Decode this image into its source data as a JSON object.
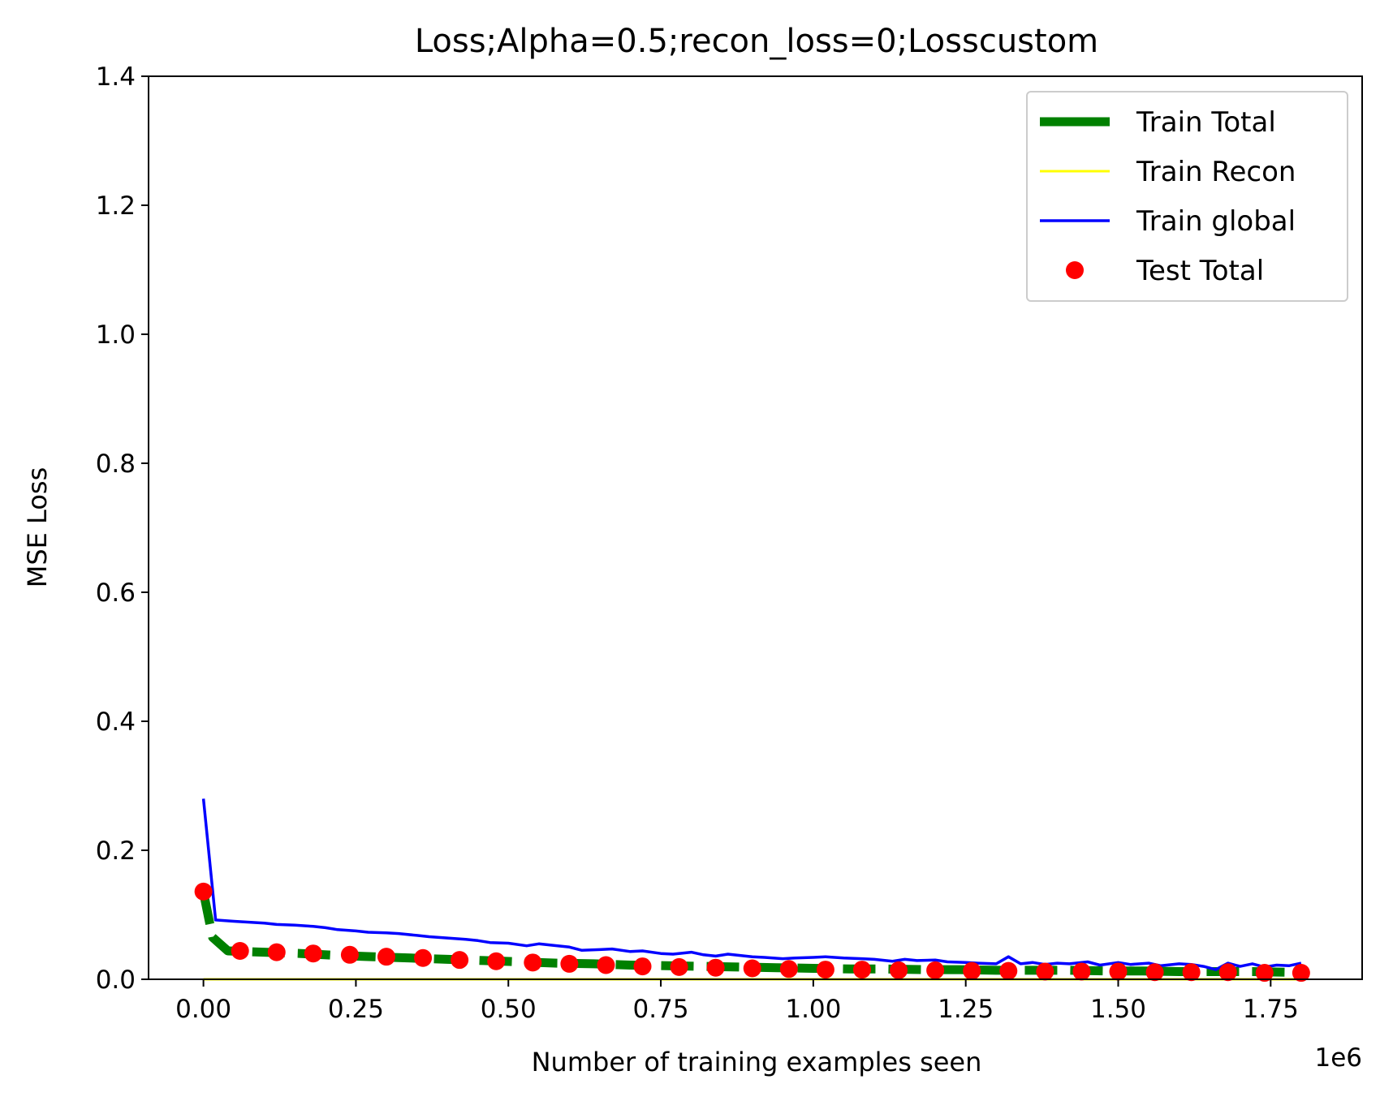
{
  "chart_data": {
    "type": "line",
    "title": "Loss;Alpha=0.5;recon_loss=0;Losscustom",
    "xlabel": "Number of training examples seen",
    "ylabel": "MSE Loss",
    "x_offset_label": "1e6",
    "xlim": [
      -0.09,
      1.9
    ],
    "ylim": [
      0,
      1.4
    ],
    "xticks": [
      0.0,
      0.25,
      0.5,
      0.75,
      1.0,
      1.25,
      1.5,
      1.75
    ],
    "xtick_labels": [
      "0.00",
      "0.25",
      "0.50",
      "0.75",
      "1.00",
      "1.25",
      "1.50",
      "1.75"
    ],
    "yticks": [
      0.0,
      0.2,
      0.4,
      0.6,
      0.8,
      1.0,
      1.2,
      1.4
    ],
    "ytick_labels": [
      "0.0",
      "0.2",
      "0.4",
      "0.6",
      "0.8",
      "1.0",
      "1.2",
      "1.4"
    ],
    "grid": false,
    "legend_position": "upper right",
    "series": [
      {
        "name": "Train Total",
        "kind": "line",
        "style": "dashed",
        "color": "#008000",
        "x": [
          0.0,
          0.015,
          0.04,
          0.1,
          0.16,
          0.22,
          0.28,
          0.34,
          0.4,
          0.46,
          0.52,
          0.58,
          0.64,
          0.7,
          0.76,
          0.82,
          0.88,
          0.94,
          1.0,
          1.06,
          1.12,
          1.18,
          1.24,
          1.3,
          1.36,
          1.42,
          1.48,
          1.54,
          1.6,
          1.66,
          1.72,
          1.78
        ],
        "y": [
          0.135,
          0.065,
          0.044,
          0.042,
          0.04,
          0.037,
          0.035,
          0.033,
          0.031,
          0.029,
          0.027,
          0.025,
          0.024,
          0.022,
          0.021,
          0.02,
          0.019,
          0.018,
          0.017,
          0.016,
          0.016,
          0.015,
          0.015,
          0.014,
          0.014,
          0.014,
          0.013,
          0.013,
          0.012,
          0.012,
          0.012,
          0.011
        ]
      },
      {
        "name": "Train Recon",
        "kind": "line",
        "style": "solid",
        "color": "#ffff00",
        "x": [
          0.0,
          1.8
        ],
        "y": [
          0.0,
          0.0
        ]
      },
      {
        "name": "Train global",
        "kind": "line",
        "style": "solid",
        "color": "#0000ff",
        "x": [
          0.0,
          0.02,
          0.05,
          0.1,
          0.12,
          0.15,
          0.18,
          0.2,
          0.22,
          0.25,
          0.27,
          0.3,
          0.32,
          0.35,
          0.37,
          0.4,
          0.43,
          0.45,
          0.47,
          0.5,
          0.53,
          0.55,
          0.57,
          0.6,
          0.62,
          0.65,
          0.67,
          0.7,
          0.72,
          0.75,
          0.77,
          0.8,
          0.82,
          0.84,
          0.86,
          0.88,
          0.9,
          0.92,
          0.95,
          0.97,
          1.0,
          1.02,
          1.05,
          1.08,
          1.1,
          1.13,
          1.15,
          1.17,
          1.2,
          1.22,
          1.25,
          1.27,
          1.3,
          1.32,
          1.34,
          1.36,
          1.38,
          1.4,
          1.42,
          1.45,
          1.47,
          1.5,
          1.52,
          1.55,
          1.57,
          1.6,
          1.62,
          1.64,
          1.66,
          1.68,
          1.7,
          1.72,
          1.74,
          1.76,
          1.78,
          1.8
        ],
        "y": [
          0.28,
          0.092,
          0.09,
          0.087,
          0.085,
          0.084,
          0.082,
          0.08,
          0.077,
          0.075,
          0.073,
          0.072,
          0.071,
          0.068,
          0.066,
          0.064,
          0.062,
          0.06,
          0.057,
          0.056,
          0.052,
          0.055,
          0.053,
          0.05,
          0.045,
          0.046,
          0.047,
          0.043,
          0.044,
          0.04,
          0.039,
          0.042,
          0.038,
          0.036,
          0.039,
          0.037,
          0.035,
          0.034,
          0.032,
          0.033,
          0.034,
          0.035,
          0.033,
          0.032,
          0.031,
          0.028,
          0.031,
          0.029,
          0.03,
          0.027,
          0.026,
          0.025,
          0.024,
          0.035,
          0.024,
          0.026,
          0.023,
          0.025,
          0.024,
          0.027,
          0.022,
          0.026,
          0.023,
          0.025,
          0.021,
          0.024,
          0.023,
          0.02,
          0.015,
          0.025,
          0.02,
          0.024,
          0.019,
          0.022,
          0.021,
          0.025
        ]
      },
      {
        "name": "Test Total",
        "kind": "scatter",
        "color": "#ff0000",
        "x": [
          0.0,
          0.06,
          0.12,
          0.18,
          0.24,
          0.3,
          0.36,
          0.42,
          0.48,
          0.54,
          0.6,
          0.66,
          0.72,
          0.78,
          0.84,
          0.9,
          0.96,
          1.02,
          1.08,
          1.14,
          1.2,
          1.26,
          1.32,
          1.38,
          1.44,
          1.5,
          1.56,
          1.62,
          1.68,
          1.74,
          1.8
        ],
        "y": [
          0.136,
          0.044,
          0.042,
          0.04,
          0.038,
          0.035,
          0.033,
          0.03,
          0.028,
          0.026,
          0.024,
          0.022,
          0.02,
          0.019,
          0.018,
          0.017,
          0.016,
          0.015,
          0.015,
          0.014,
          0.014,
          0.013,
          0.013,
          0.012,
          0.012,
          0.012,
          0.011,
          0.011,
          0.011,
          0.01,
          0.01
        ]
      }
    ]
  }
}
